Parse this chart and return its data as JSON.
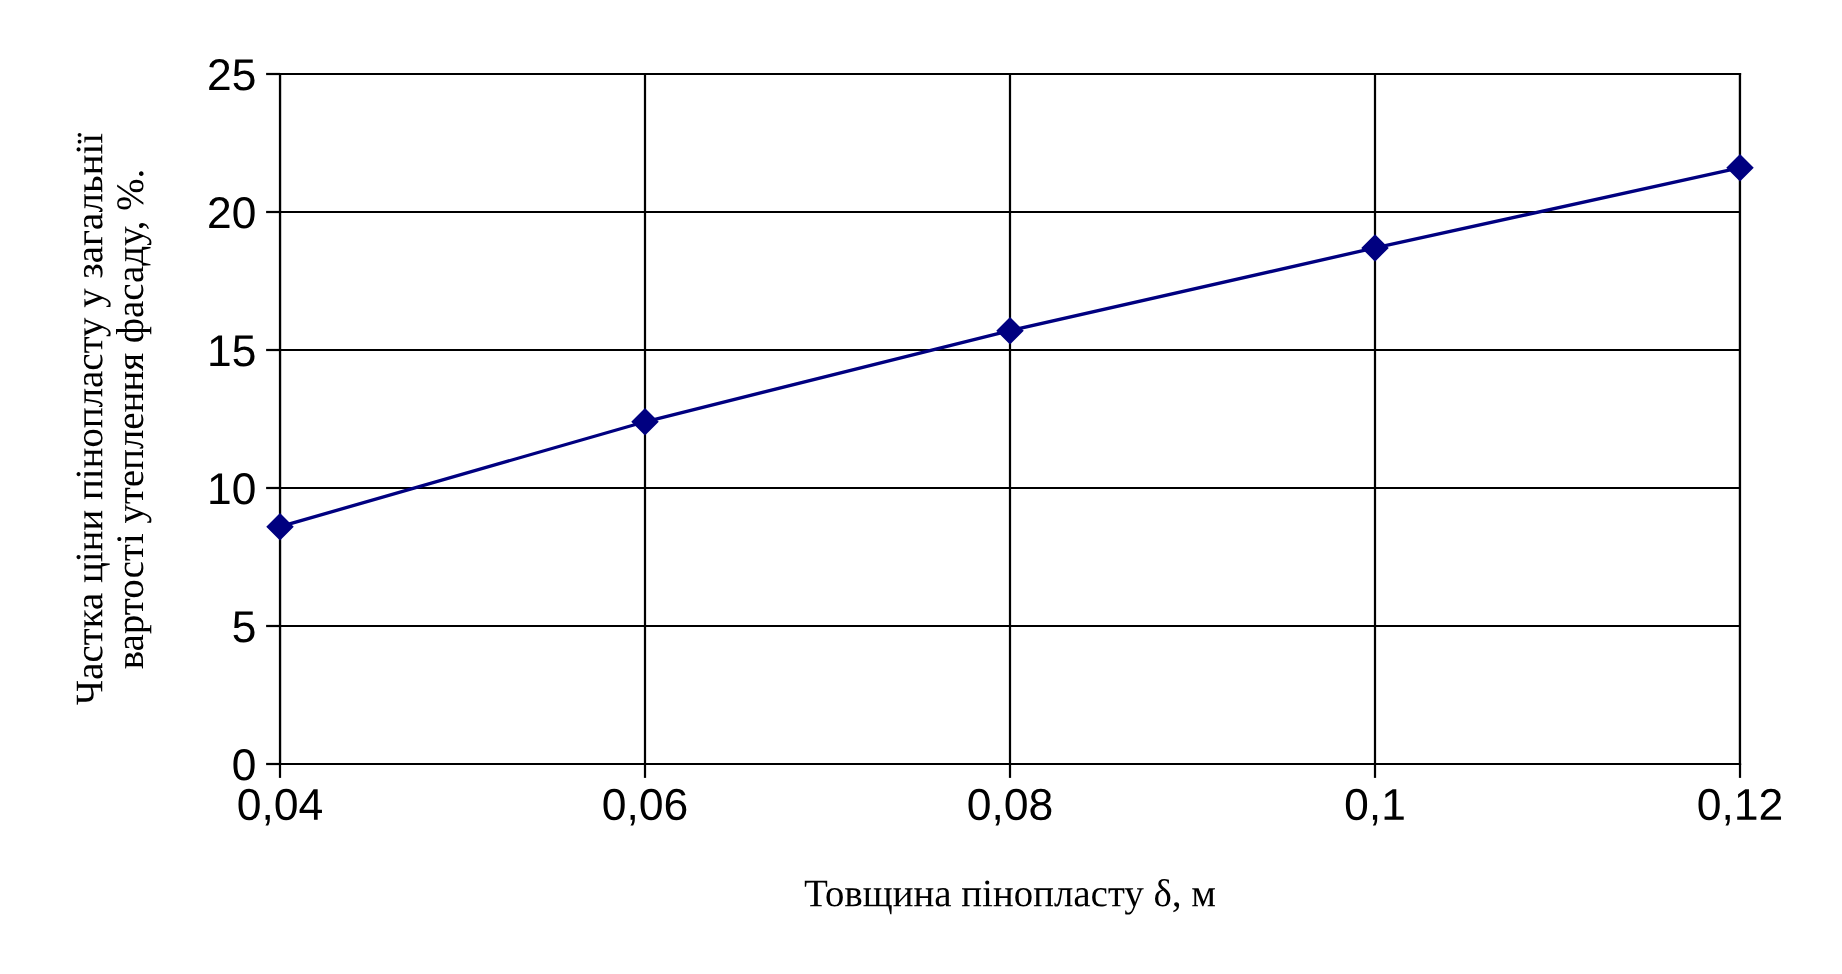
{
  "chart_data": {
    "type": "line",
    "xlabel": "Товщина пінопласту δ, м",
    "ylabel": "Частка ціни пінопласту у загальнії\nвартості утеплення фасаду, %.",
    "x": [
      0.04,
      0.06,
      0.08,
      0.1,
      0.12
    ],
    "series": [
      {
        "color": "#000080",
        "values": [
          8.6,
          12.4,
          15.7,
          18.7,
          21.6
        ]
      }
    ],
    "xlim": [
      0.04,
      0.12
    ],
    "xticks": [
      {
        "value": 0.04,
        "label": "0,04"
      },
      {
        "value": 0.06,
        "label": "0,06"
      },
      {
        "value": 0.08,
        "label": "0,08"
      },
      {
        "value": 0.1,
        "label": "0,1"
      },
      {
        "value": 0.12,
        "label": "0,12"
      }
    ],
    "ylim": [
      0,
      25
    ],
    "yticks": [
      0,
      5,
      10,
      15,
      20,
      25
    ],
    "grid": true,
    "marker": "diamond",
    "line_style": "solid"
  }
}
